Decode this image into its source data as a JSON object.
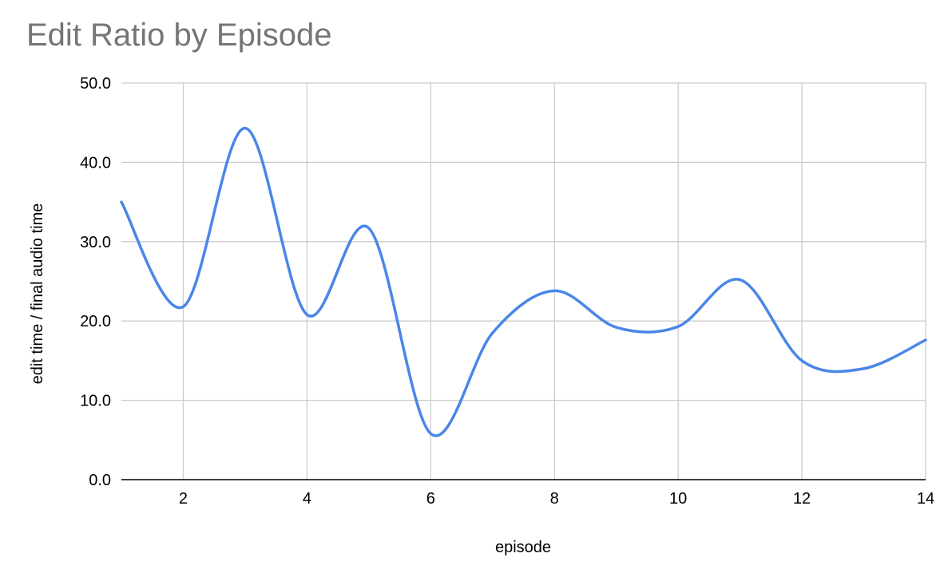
{
  "chart_data": {
    "type": "line",
    "title": "Edit Ratio by Episode",
    "xlabel": "episode",
    "ylabel": "edit time / final audio time",
    "xlim": [
      1,
      14
    ],
    "ylim": [
      0,
      50
    ],
    "x_ticks": [
      2,
      4,
      6,
      8,
      10,
      12,
      14
    ],
    "x_tick_labels": [
      "2",
      "4",
      "6",
      "8",
      "10",
      "12",
      "14"
    ],
    "y_ticks": [
      0,
      10,
      20,
      30,
      40,
      50
    ],
    "y_tick_labels": [
      "0.0",
      "10.0",
      "20.0",
      "30.0",
      "40.0",
      "50.0"
    ],
    "grid": true,
    "smooth": true,
    "legend": "none",
    "series": [
      {
        "color": "#4a86e8",
        "x": [
          1,
          2,
          3,
          4,
          5,
          6,
          7,
          8,
          9,
          10,
          11,
          12,
          13,
          14
        ],
        "values": [
          35.0,
          21.8,
          44.3,
          20.8,
          31.7,
          5.8,
          18.5,
          23.8,
          19.2,
          19.3,
          25.2,
          15.0,
          14.0,
          17.6
        ]
      }
    ],
    "colors": {
      "line": "#4a86e8",
      "grid": "#cccccc",
      "axis": "#000000",
      "title": "#757575"
    }
  }
}
